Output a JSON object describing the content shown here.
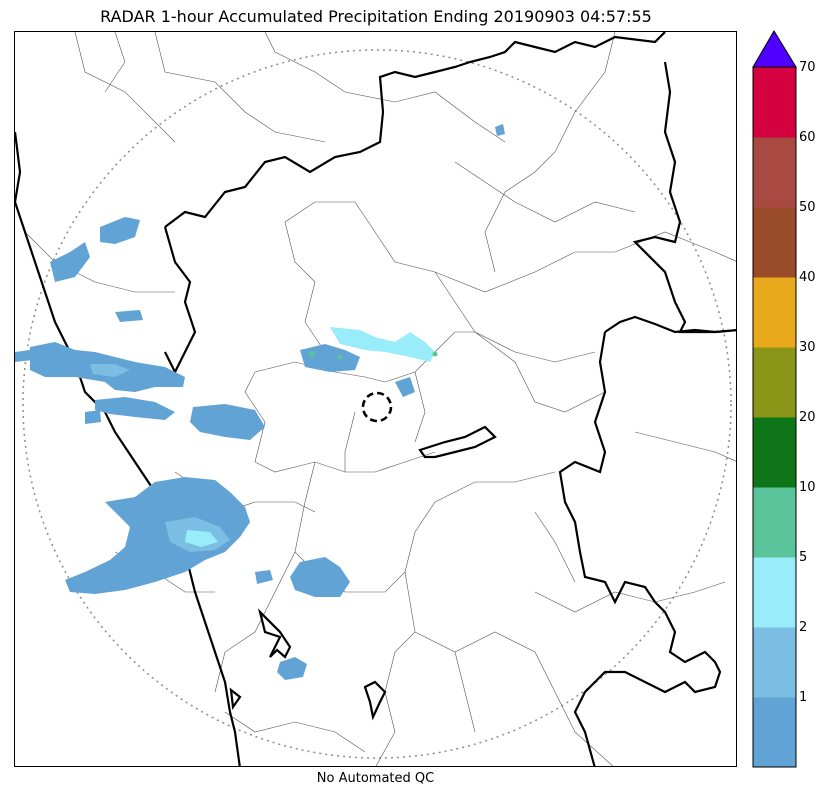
{
  "title": "RADAR 1-hour Accumulated Precipitation Ending 20190903 04:57:55",
  "footer": "No Automated QC",
  "colorbar": {
    "ticks": [
      "1",
      "2",
      "5",
      "10",
      "20",
      "30",
      "40",
      "50",
      "60",
      "70"
    ],
    "bins": [
      {
        "color": "#62a3d6"
      },
      {
        "color": "#7bbde3"
      },
      {
        "color": "#99ecfa"
      },
      {
        "color": "#5cc49a"
      },
      {
        "color": "#0f7519"
      },
      {
        "color": "#8a9618"
      },
      {
        "color": "#e8a91c"
      },
      {
        "color": "#9a4b2a"
      },
      {
        "color": "#a84a42"
      },
      {
        "color": "#d40040"
      }
    ],
    "over_color": "#4f00ff"
  },
  "colors": {
    "precip_light": "#62a3d6",
    "precip_medium": "#7bbde3",
    "precip_cyan": "#99ecfa",
    "precip_green": "#5cc49a",
    "range_ring": "#8c8c8c",
    "border": "#000000"
  }
}
